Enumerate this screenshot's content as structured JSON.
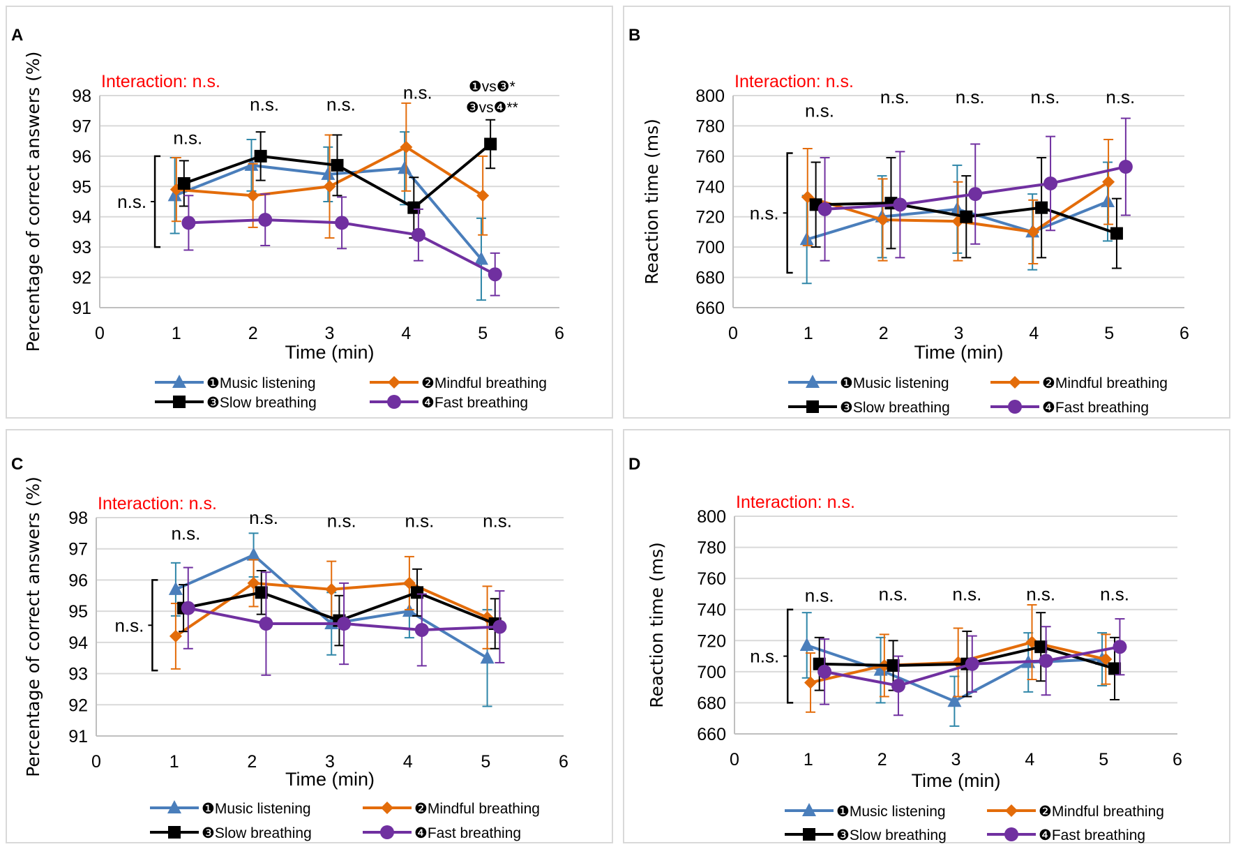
{
  "colors": {
    "music": "#4a7ebb",
    "music_err": "#2e86a8",
    "mindful": "#e36c0a",
    "slow": "#000000",
    "fast": "#7030a0",
    "interaction": "#ff0000",
    "grid": "#d9d9d9",
    "axis": "#bfbfbf"
  },
  "legend": [
    {
      "key": "music",
      "label": "❶Music listening",
      "marker": "triangle"
    },
    {
      "key": "mindful",
      "label": "❷Mindful breathing",
      "marker": "diamond"
    },
    {
      "key": "slow",
      "label": "❸Slow breathing",
      "marker": "square"
    },
    {
      "key": "fast",
      "label": "❹Fast breathing",
      "marker": "circle"
    }
  ],
  "chart_data": [
    {
      "panel": "A",
      "type": "line",
      "xlabel": "Time (min)",
      "ylabel": "Percentage of correct answers (%)",
      "xlim": [
        0,
        6
      ],
      "ylim": [
        91,
        98
      ],
      "xticks": [
        0,
        1,
        2,
        3,
        4,
        5,
        6
      ],
      "yticks": [
        91,
        92,
        93,
        94,
        95,
        96,
        97,
        98
      ],
      "grid": true,
      "legend_position": "bottom",
      "interaction_label": "Interaction: n.s.",
      "main_effect_label": "n.s.",
      "main_effect_range": [
        93,
        96
      ],
      "time_annotations": [
        {
          "x": 1,
          "lines": [
            "n.s."
          ],
          "y": 96.4
        },
        {
          "x": 2,
          "lines": [
            "n.s."
          ],
          "y": 97.5
        },
        {
          "x": 3,
          "lines": [
            "n.s."
          ],
          "y": 97.5
        },
        {
          "x": 4,
          "lines": [
            "n.s."
          ],
          "y": 97.9
        },
        {
          "x": 5,
          "lines": [
            "❶vs❸*",
            "❸vs❹**"
          ],
          "y": 98
        }
      ],
      "x": [
        1,
        2,
        3,
        4,
        5
      ],
      "series": [
        {
          "name": "music",
          "values": [
            94.7,
            95.7,
            95.4,
            95.6,
            92.6
          ],
          "err": [
            1.25,
            0.85,
            0.9,
            1.2,
            1.35
          ]
        },
        {
          "name": "mindful",
          "values": [
            94.9,
            94.7,
            95.0,
            96.3,
            94.7
          ],
          "err": [
            1.05,
            1.05,
            1.7,
            1.45,
            1.3
          ]
        },
        {
          "name": "slow",
          "values": [
            95.1,
            96.0,
            95.7,
            94.3,
            96.4
          ],
          "err": [
            0.75,
            0.8,
            1.0,
            1.0,
            0.8
          ]
        },
        {
          "name": "fast",
          "values": [
            93.8,
            93.9,
            93.8,
            93.4,
            92.1
          ],
          "err": [
            0.9,
            0.85,
            0.85,
            0.85,
            0.7
          ]
        }
      ]
    },
    {
      "panel": "B",
      "type": "line",
      "xlabel": "Time (min)",
      "ylabel": "Reaction time (ms)",
      "xlim": [
        0,
        6
      ],
      "ylim": [
        660,
        800
      ],
      "xticks": [
        0,
        1,
        2,
        3,
        4,
        5,
        6
      ],
      "yticks": [
        660,
        680,
        700,
        720,
        740,
        760,
        780,
        800
      ],
      "grid": true,
      "legend_position": "bottom",
      "interaction_label": "Interaction: n.s.",
      "main_effect_label": "n.s.",
      "main_effect_range": [
        683,
        762
      ],
      "time_annotations": [
        {
          "x": 1,
          "lines": [
            "n.s."
          ],
          "y": 786
        },
        {
          "x": 2,
          "lines": [
            "n.s."
          ],
          "y": 795
        },
        {
          "x": 3,
          "lines": [
            "n.s."
          ],
          "y": 795
        },
        {
          "x": 4,
          "lines": [
            "n.s."
          ],
          "y": 795
        },
        {
          "x": 5,
          "lines": [
            "n.s."
          ],
          "y": 795
        }
      ],
      "x": [
        1,
        2,
        3,
        4,
        5
      ],
      "series": [
        {
          "name": "music",
          "values": [
            705,
            720,
            725,
            710,
            730
          ],
          "err": [
            29,
            27,
            29,
            25,
            26
          ]
        },
        {
          "name": "mindful",
          "values": [
            733,
            718,
            717,
            710,
            743
          ],
          "err": [
            32,
            27,
            26,
            21,
            28
          ]
        },
        {
          "name": "slow",
          "values": [
            728,
            729,
            720,
            726,
            709
          ],
          "err": [
            28,
            30,
            27,
            33,
            23
          ]
        },
        {
          "name": "fast",
          "values": [
            725,
            728,
            735,
            742,
            753
          ],
          "err": [
            34,
            35,
            33,
            31,
            32
          ]
        }
      ]
    },
    {
      "panel": "C",
      "type": "line",
      "xlabel": "Time (min)",
      "ylabel": "Percentage of correct answers (%)",
      "xlim": [
        0,
        6
      ],
      "ylim": [
        91,
        98
      ],
      "xticks": [
        0,
        1,
        2,
        3,
        4,
        5,
        6
      ],
      "yticks": [
        91,
        92,
        93,
        94,
        95,
        96,
        97,
        98
      ],
      "grid": true,
      "legend_position": "bottom",
      "interaction_label": "Interaction: n.s.",
      "main_effect_label": "n.s.",
      "main_effect_range": [
        93.1,
        96
      ],
      "time_annotations": [
        {
          "x": 1,
          "lines": [
            "n.s."
          ],
          "y": 97.3
        },
        {
          "x": 2,
          "lines": [
            "n.s."
          ],
          "y": 97.8
        },
        {
          "x": 3,
          "lines": [
            "n.s."
          ],
          "y": 97.7
        },
        {
          "x": 4,
          "lines": [
            "n.s."
          ],
          "y": 97.7
        },
        {
          "x": 5,
          "lines": [
            "n.s."
          ],
          "y": 97.7
        }
      ],
      "x": [
        1,
        2,
        3,
        4,
        5
      ],
      "series": [
        {
          "name": "music",
          "values": [
            95.7,
            96.8,
            94.6,
            95.0,
            93.5
          ],
          "err": [
            0.85,
            0.7,
            1.0,
            0.85,
            1.55
          ]
        },
        {
          "name": "mindful",
          "values": [
            94.2,
            95.9,
            95.7,
            95.9,
            94.8
          ],
          "err": [
            1.05,
            0.75,
            0.9,
            0.85,
            1.0
          ]
        },
        {
          "name": "slow",
          "values": [
            95.1,
            95.6,
            94.7,
            95.6,
            94.6
          ],
          "err": [
            0.75,
            0.7,
            0.8,
            0.75,
            0.8
          ]
        },
        {
          "name": "fast",
          "values": [
            95.1,
            94.6,
            94.6,
            94.4,
            94.5
          ],
          "err": [
            1.3,
            1.65,
            1.3,
            1.15,
            1.15
          ]
        }
      ]
    },
    {
      "panel": "D",
      "type": "line",
      "xlabel": "Time (min)",
      "ylabel": "Reaction time (ms)",
      "xlim": [
        0,
        6
      ],
      "ylim": [
        660,
        800
      ],
      "xticks": [
        0,
        1,
        2,
        3,
        4,
        5,
        6
      ],
      "yticks": [
        660,
        680,
        700,
        720,
        740,
        760,
        780,
        800
      ],
      "grid": true,
      "legend_position": "bottom",
      "interaction_label": "Interaction: n.s.",
      "main_effect_label": "n.s.",
      "main_effect_range": [
        680,
        740
      ],
      "time_annotations": [
        {
          "x": 1,
          "lines": [
            "n.s."
          ],
          "y": 745
        },
        {
          "x": 2,
          "lines": [
            "n.s."
          ],
          "y": 746
        },
        {
          "x": 3,
          "lines": [
            "n.s."
          ],
          "y": 746
        },
        {
          "x": 4,
          "lines": [
            "n.s."
          ],
          "y": 746
        },
        {
          "x": 5,
          "lines": [
            "n.s."
          ],
          "y": 746
        }
      ],
      "x": [
        1,
        2,
        3,
        4,
        5
      ],
      "series": [
        {
          "name": "music",
          "values": [
            717,
            701,
            681,
            706,
            708
          ],
          "err": [
            21,
            21,
            16,
            19,
            17
          ]
        },
        {
          "name": "mindful",
          "values": [
            693,
            704,
            706,
            719,
            708
          ],
          "err": [
            19,
            20,
            22,
            24,
            16
          ]
        },
        {
          "name": "slow",
          "values": [
            705,
            704,
            705,
            716,
            702
          ],
          "err": [
            17,
            16,
            21,
            22,
            20
          ]
        },
        {
          "name": "fast",
          "values": [
            700,
            691,
            705,
            707,
            716
          ],
          "err": [
            21,
            19,
            18,
            22,
            18
          ]
        }
      ]
    }
  ]
}
